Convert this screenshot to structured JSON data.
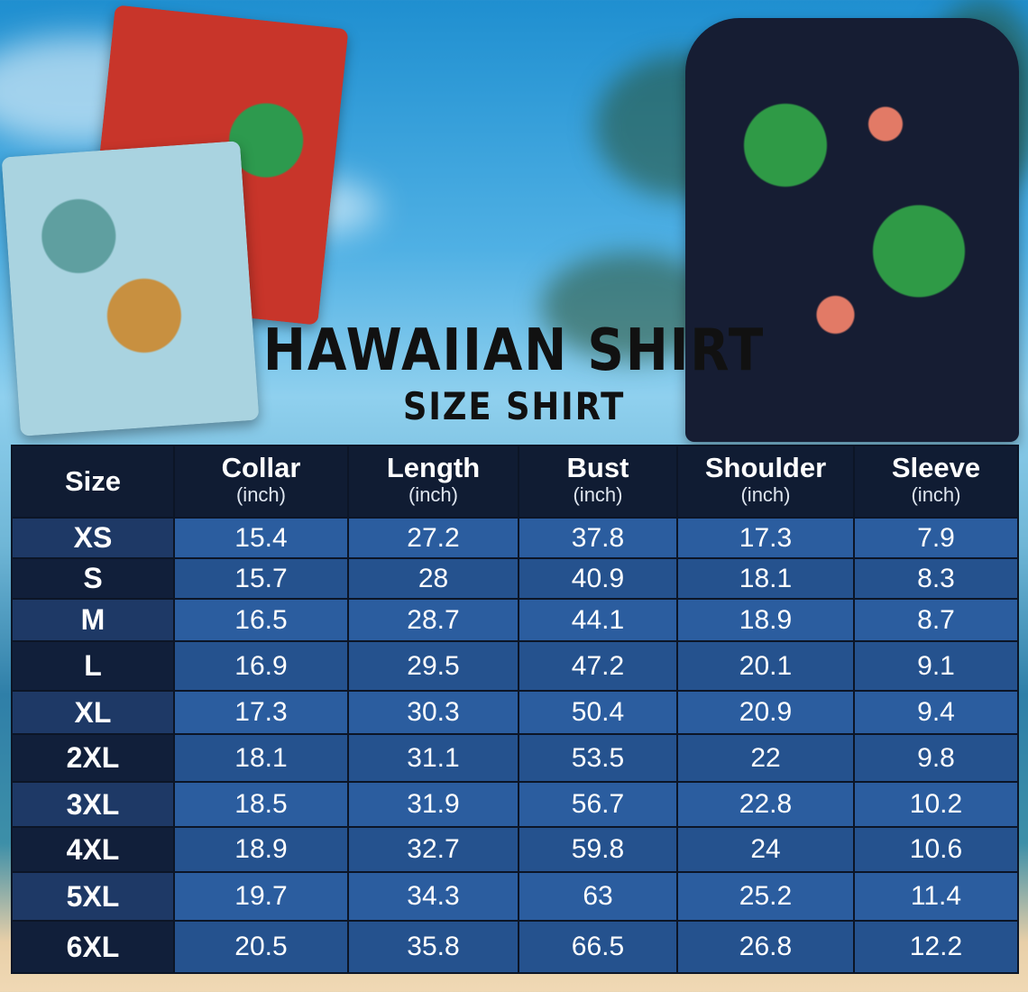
{
  "title": "HAWAIIAN SHIRT",
  "subtitle": "SIZE SHIRT",
  "colors": {
    "header": "#101c33",
    "cell": "#2b5d9f",
    "title": "#111111"
  },
  "table": {
    "headers": [
      {
        "label": "Size",
        "unit": ""
      },
      {
        "label": "Collar",
        "unit": "(inch)"
      },
      {
        "label": "Length",
        "unit": "(inch)"
      },
      {
        "label": "Bust",
        "unit": "(inch)"
      },
      {
        "label": "Shoulder",
        "unit": "(inch)"
      },
      {
        "label": "Sleeve",
        "unit": "(inch)"
      }
    ],
    "rows": [
      [
        "XS",
        "15.4",
        "27.2",
        "37.8",
        "17.3",
        "7.9"
      ],
      [
        "S",
        "15.7",
        "28",
        "40.9",
        "18.1",
        "8.3"
      ],
      [
        "M",
        "16.5",
        "28.7",
        "44.1",
        "18.9",
        "8.7"
      ],
      [
        "L",
        "16.9",
        "29.5",
        "47.2",
        "20.1",
        "9.1"
      ],
      [
        "XL",
        "17.3",
        "30.3",
        "50.4",
        "20.9",
        "9.4"
      ],
      [
        "2XL",
        "18.1",
        "31.1",
        "53.5",
        "22",
        "9.8"
      ],
      [
        "3XL",
        "18.5",
        "31.9",
        "56.7",
        "22.8",
        "10.2"
      ],
      [
        "4XL",
        "18.9",
        "32.7",
        "59.8",
        "24",
        "10.6"
      ],
      [
        "5XL",
        "19.7",
        "34.3",
        "63",
        "25.2",
        "11.4"
      ],
      [
        "6XL",
        "20.5",
        "35.8",
        "66.5",
        "26.8",
        "12.2"
      ]
    ]
  }
}
